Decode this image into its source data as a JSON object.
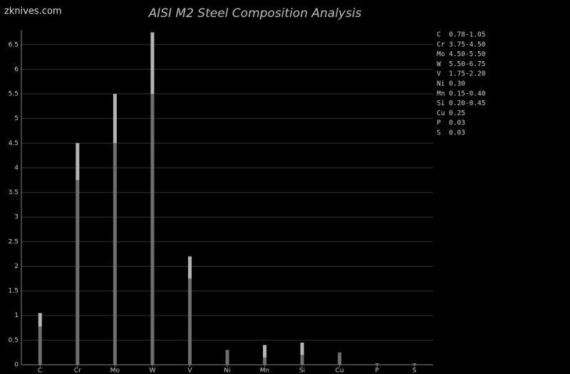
{
  "site": "zknives.com",
  "chart_data": {
    "type": "range-bar",
    "title": "AISI M2 Steel Composition Analysis",
    "categories": [
      "C",
      "Cr",
      "Mo",
      "W",
      "V",
      "Ni",
      "Mn",
      "Si",
      "Cu",
      "P",
      "S"
    ],
    "low": [
      0.78,
      3.75,
      4.5,
      5.5,
      1.75,
      null,
      0.15,
      0.2,
      null,
      null,
      null
    ],
    "high": [
      1.05,
      4.5,
      5.5,
      6.75,
      2.2,
      0.3,
      0.4,
      0.45,
      0.25,
      0.03,
      0.03
    ],
    "low_color": "#6e6e6e",
    "high_color": "#b4b4b4",
    "ylim": [
      0,
      6.8
    ],
    "yticks": [
      0,
      0.5,
      1,
      1.5,
      2,
      2.5,
      3,
      3.5,
      4,
      4.5,
      5,
      5.5,
      6,
      6.5
    ],
    "grid": true,
    "legend": [
      {
        "label": "C",
        "range": "0.78-1.05"
      },
      {
        "label": "Cr",
        "range": "3.75-4.50"
      },
      {
        "label": "Mo",
        "range": "4.50-5.50"
      },
      {
        "label": "W",
        "range": "5.50-6.75"
      },
      {
        "label": "V",
        "range": "1.75-2.20"
      },
      {
        "label": "Ni",
        "range": "0.30"
      },
      {
        "label": "Mn",
        "range": "0.15-0.40"
      },
      {
        "label": "Si",
        "range": "0.20-0.45"
      },
      {
        "label": "Cu",
        "range": "0.25"
      },
      {
        "label": "P",
        "range": "0.03"
      },
      {
        "label": "S",
        "range": "0.03"
      }
    ]
  }
}
